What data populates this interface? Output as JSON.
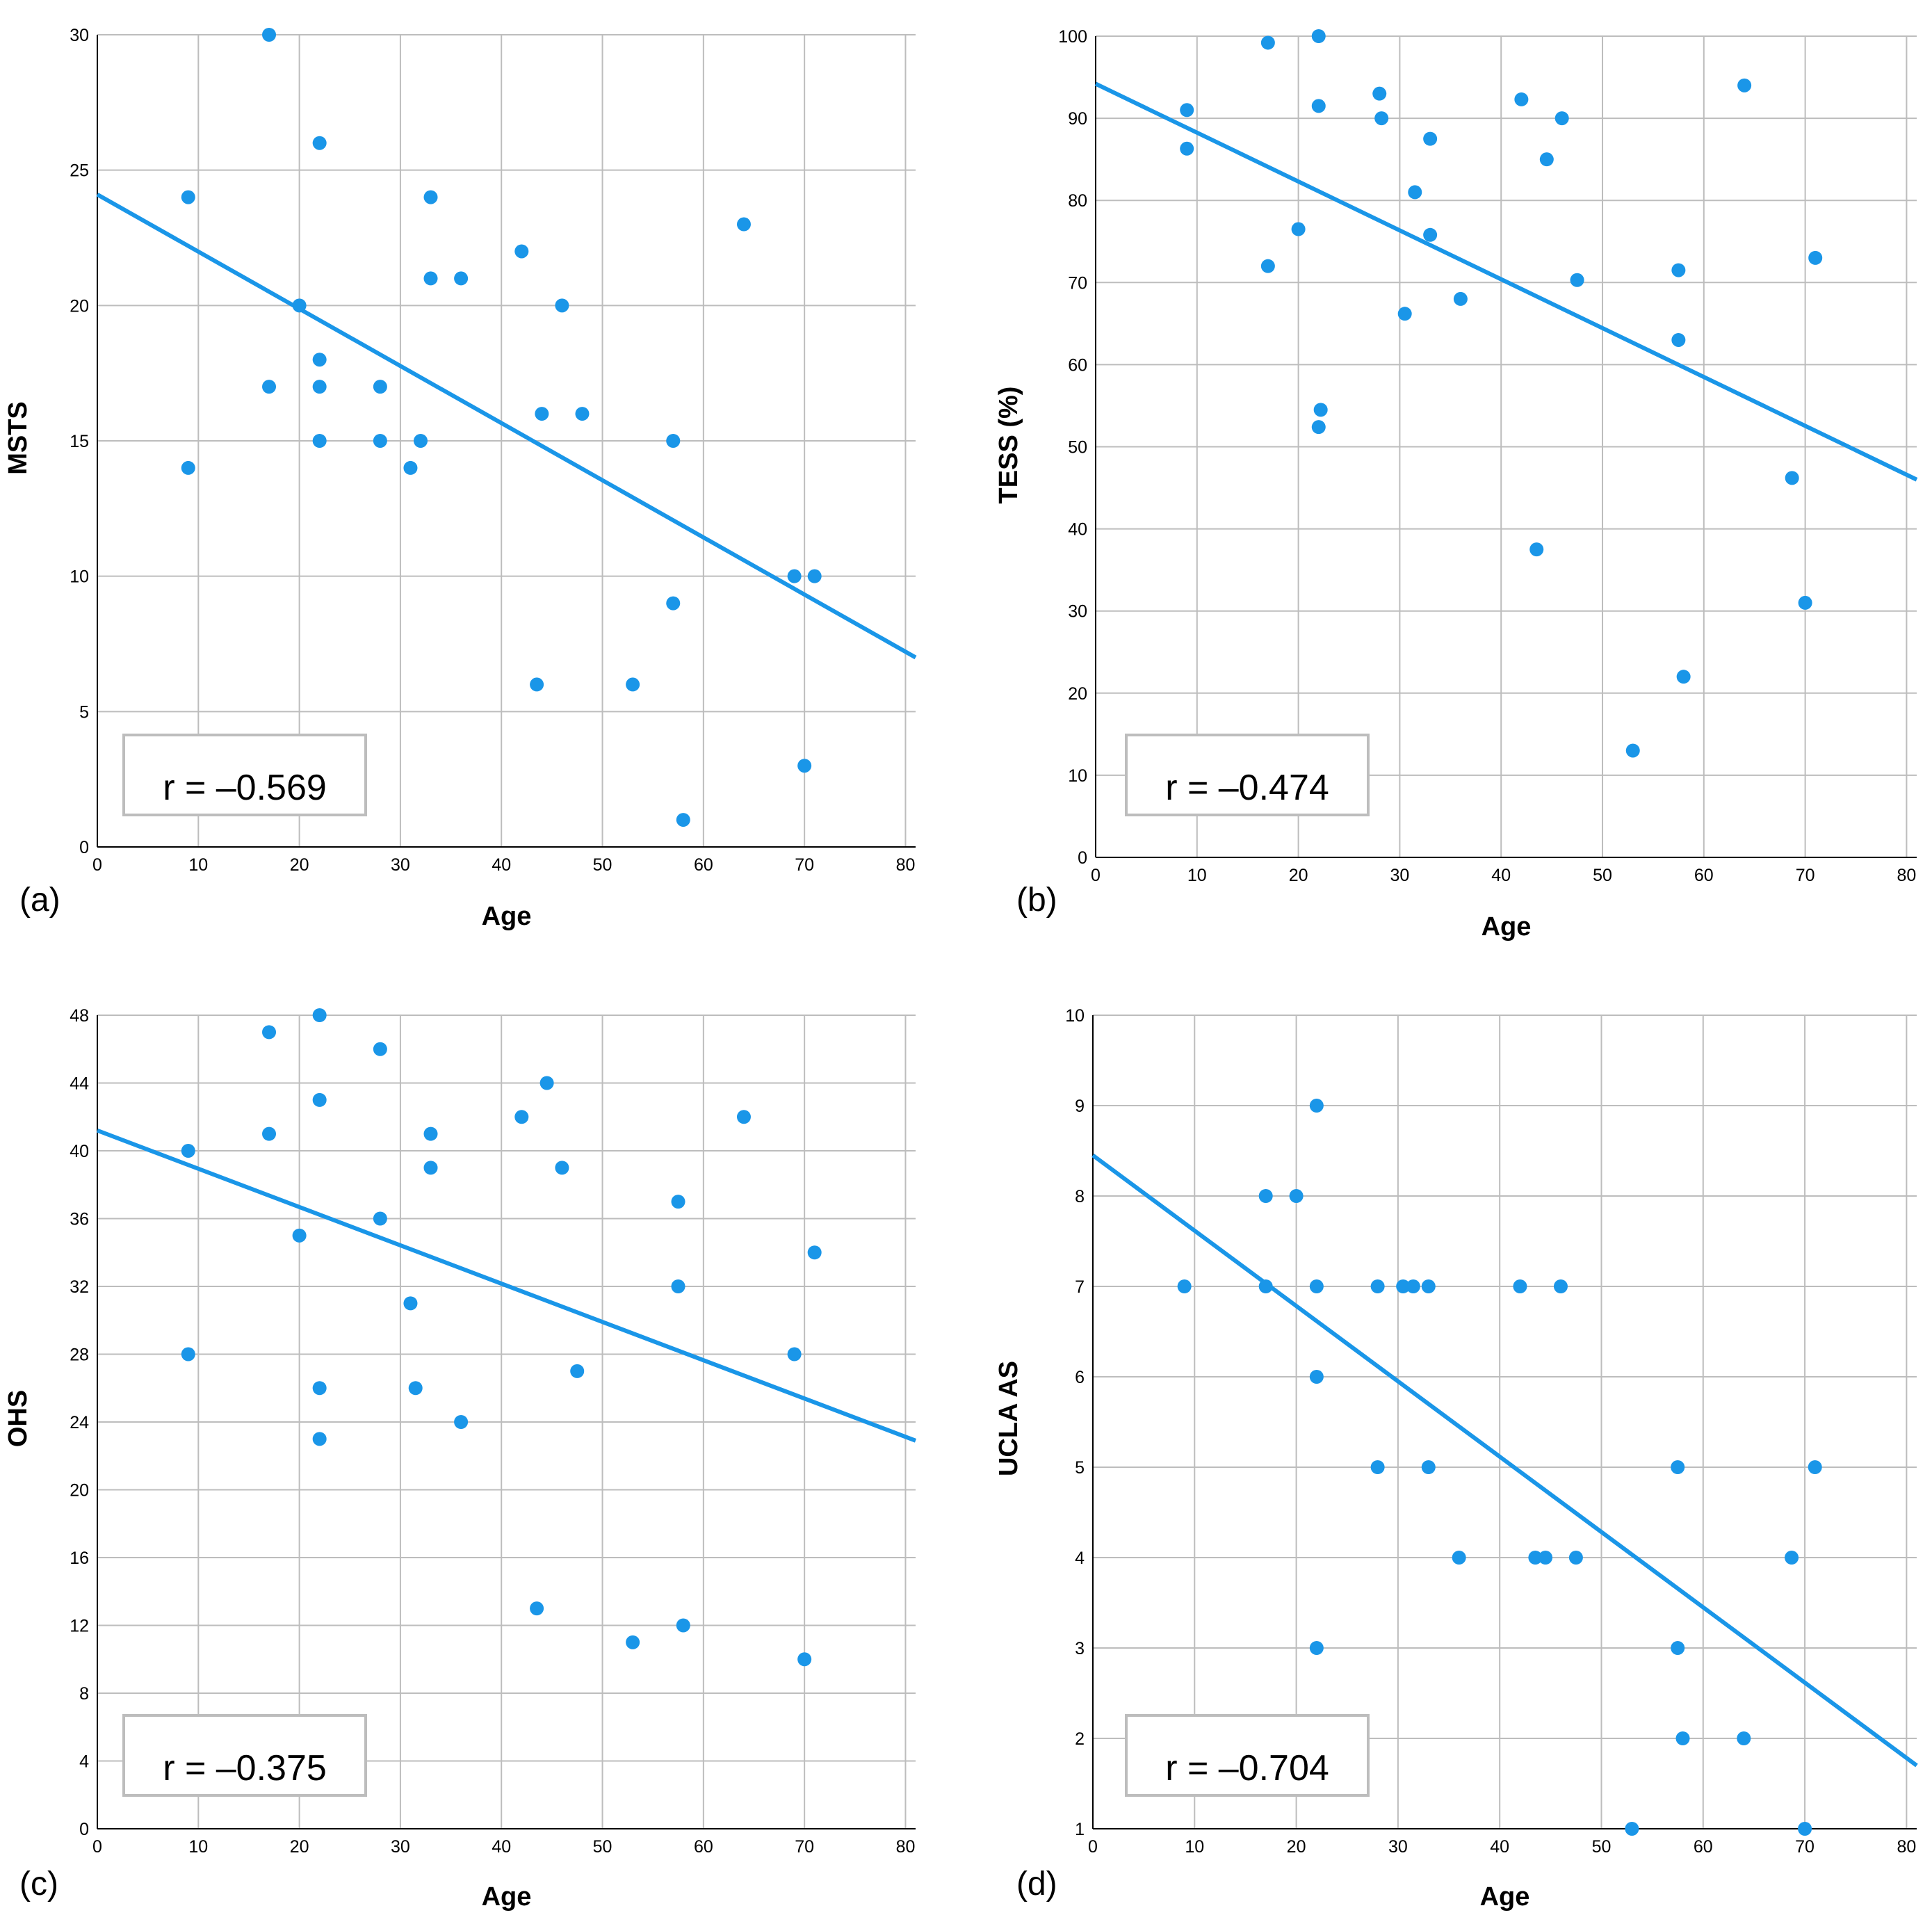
{
  "point_color": "#1a96e8",
  "line_color": "#1a96e8",
  "chart_data": [
    {
      "type": "scatter",
      "panel_label": "(a)",
      "xlabel": "Age",
      "ylabel": "MSTS",
      "xlim": [
        0,
        81
      ],
      "ylim": [
        0,
        30
      ],
      "xticks": [
        0,
        10,
        20,
        30,
        40,
        50,
        60,
        70,
        80
      ],
      "yticks": [
        0,
        5,
        10,
        15,
        20,
        25,
        30
      ],
      "annotation": "r = –0.569",
      "fit_line": [
        [
          0,
          24.1
        ],
        [
          81,
          7.0
        ]
      ],
      "points": [
        [
          17,
          30
        ],
        [
          22,
          26
        ],
        [
          9,
          24
        ],
        [
          33,
          24
        ],
        [
          64,
          23
        ],
        [
          42,
          22
        ],
        [
          33,
          21
        ],
        [
          36,
          21
        ],
        [
          20,
          20
        ],
        [
          46,
          20
        ],
        [
          22,
          18
        ],
        [
          17,
          17
        ],
        [
          22,
          17
        ],
        [
          28,
          17
        ],
        [
          44,
          16
        ],
        [
          48,
          16
        ],
        [
          22,
          15
        ],
        [
          28,
          15
        ],
        [
          32,
          15
        ],
        [
          57,
          15
        ],
        [
          9,
          14
        ],
        [
          31,
          14
        ],
        [
          69,
          10
        ],
        [
          71,
          10
        ],
        [
          57,
          9
        ],
        [
          43.5,
          6
        ],
        [
          53,
          6
        ],
        [
          70,
          3
        ],
        [
          58,
          1
        ]
      ]
    },
    {
      "type": "scatter",
      "panel_label": "(b)",
      "xlabel": "Age",
      "ylabel": "TESS (%)",
      "xlim": [
        0,
        81
      ],
      "ylim": [
        0,
        100
      ],
      "xticks": [
        0,
        10,
        20,
        30,
        40,
        50,
        60,
        70,
        80
      ],
      "yticks": [
        0,
        10,
        20,
        30,
        40,
        50,
        60,
        70,
        80,
        90,
        100
      ],
      "annotation": "r = –0.474",
      "fit_line": [
        [
          0,
          94.2
        ],
        [
          81,
          46.0
        ]
      ],
      "points": [
        [
          22,
          100
        ],
        [
          17,
          99.2
        ],
        [
          64,
          94
        ],
        [
          28,
          93
        ],
        [
          42,
          92.3
        ],
        [
          22,
          91.5
        ],
        [
          9,
          91
        ],
        [
          28.2,
          90
        ],
        [
          46,
          90
        ],
        [
          9,
          86.3
        ],
        [
          33,
          87.5
        ],
        [
          44.5,
          85
        ],
        [
          31.5,
          81
        ],
        [
          20,
          76.5
        ],
        [
          33,
          75.8
        ],
        [
          71,
          73
        ],
        [
          17,
          72
        ],
        [
          57.5,
          71.5
        ],
        [
          47.5,
          70.3
        ],
        [
          36,
          68
        ],
        [
          30.5,
          66.2
        ],
        [
          57.5,
          63
        ],
        [
          22.2,
          54.5
        ],
        [
          22,
          52.4
        ],
        [
          68.7,
          46.2
        ],
        [
          43.5,
          37.5
        ],
        [
          70,
          31
        ],
        [
          58,
          22
        ],
        [
          53,
          13
        ]
      ]
    },
    {
      "type": "scatter",
      "panel_label": "(c)",
      "xlabel": "Age",
      "ylabel": "OHS",
      "xlim": [
        0,
        81
      ],
      "ylim": [
        0,
        48
      ],
      "xticks": [
        0,
        10,
        20,
        30,
        40,
        50,
        60,
        70,
        80
      ],
      "yticks": [
        0,
        4,
        8,
        12,
        16,
        20,
        24,
        28,
        32,
        36,
        40,
        44,
        48
      ],
      "annotation": "r = –0.375",
      "fit_line": [
        [
          0,
          41.2
        ],
        [
          81,
          22.9
        ]
      ],
      "points": [
        [
          22,
          48
        ],
        [
          17,
          47
        ],
        [
          28,
          46
        ],
        [
          44.5,
          44
        ],
        [
          22,
          43
        ],
        [
          42,
          42
        ],
        [
          64,
          42
        ],
        [
          17,
          41
        ],
        [
          33,
          41
        ],
        [
          9,
          40
        ],
        [
          33,
          39
        ],
        [
          46,
          39
        ],
        [
          57.5,
          37
        ],
        [
          28,
          36
        ],
        [
          20,
          35
        ],
        [
          71,
          34
        ],
        [
          57.5,
          32
        ],
        [
          31,
          31
        ],
        [
          9,
          28
        ],
        [
          69,
          28
        ],
        [
          47.5,
          27
        ],
        [
          22,
          26
        ],
        [
          31.5,
          26
        ],
        [
          36,
          24
        ],
        [
          22,
          23
        ],
        [
          43.5,
          13
        ],
        [
          58,
          12
        ],
        [
          53,
          11
        ],
        [
          70,
          10
        ]
      ]
    },
    {
      "type": "scatter",
      "panel_label": "(d)",
      "xlabel": "Age",
      "ylabel": "UCLA AS",
      "xlim": [
        0,
        81
      ],
      "ylim": [
        1,
        10
      ],
      "xticks": [
        0,
        10,
        20,
        30,
        40,
        50,
        60,
        70,
        80
      ],
      "yticks": [
        1,
        2,
        3,
        4,
        5,
        6,
        7,
        8,
        9,
        10
      ],
      "annotation": "r = –0.704",
      "fit_line": [
        [
          0,
          8.45
        ],
        [
          81,
          1.7
        ]
      ],
      "points": [
        [
          22,
          9
        ],
        [
          17,
          8
        ],
        [
          20,
          8
        ],
        [
          9,
          7
        ],
        [
          17,
          7
        ],
        [
          22,
          7
        ],
        [
          28,
          7
        ],
        [
          30.5,
          7
        ],
        [
          31.5,
          7
        ],
        [
          33,
          7
        ],
        [
          42,
          7
        ],
        [
          46,
          7
        ],
        [
          22,
          6
        ],
        [
          28,
          5
        ],
        [
          33,
          5
        ],
        [
          57.5,
          5
        ],
        [
          71,
          5
        ],
        [
          36,
          4
        ],
        [
          43.5,
          4
        ],
        [
          44.5,
          4
        ],
        [
          47.5,
          4
        ],
        [
          68.7,
          4
        ],
        [
          22,
          3
        ],
        [
          57.5,
          3
        ],
        [
          58,
          2
        ],
        [
          64,
          2
        ],
        [
          53,
          1
        ],
        [
          70,
          1
        ]
      ]
    }
  ]
}
